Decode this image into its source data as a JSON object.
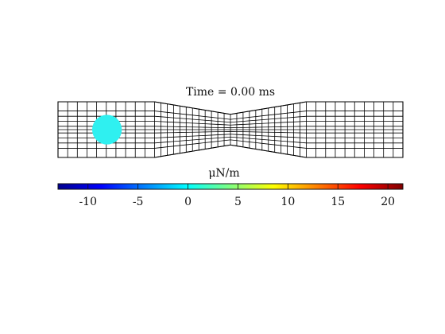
{
  "chart_data": {
    "type": "heatmap",
    "title": "Time = 0.00 ms",
    "colorbar": {
      "label": "μN/m",
      "ticks": [
        -10,
        -5,
        0,
        5,
        10,
        15,
        20
      ],
      "range": [
        -13,
        21.5
      ],
      "colormap": "jet"
    },
    "channel": {
      "x_range": [
        0,
        10
      ],
      "wide_half_height": 1.0,
      "narrow_half_height": 0.55,
      "constriction_start": 2.8,
      "constriction_end": 7.2
    },
    "cell": {
      "center": [
        1.42,
        0.0
      ],
      "radius": 0.62,
      "color": "#2ff0f0"
    },
    "colors": {
      "mesh": "#000000",
      "background": "#ffffff"
    }
  }
}
